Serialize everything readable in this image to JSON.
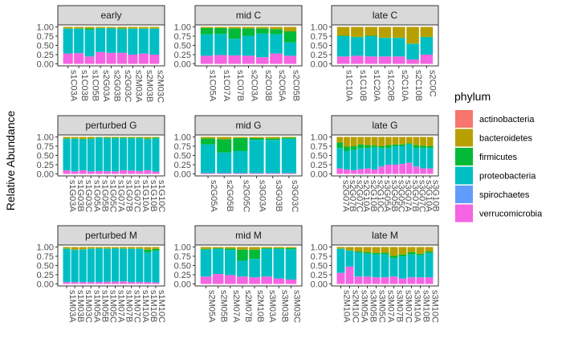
{
  "chart_data": {
    "type": "bar",
    "stacked": true,
    "ylabel": "Relative Abundance",
    "xlabel": "",
    "ylim": [
      0,
      1
    ],
    "yticks": [
      "0.00",
      "0.25",
      "0.50",
      "0.75",
      "1.00"
    ],
    "grid": false,
    "legend_position": "right",
    "legend_title": "phylum",
    "stack_order_top_to_bottom": [
      "actinobacteria",
      "bacteroidetes",
      "firmicutes",
      "proteobacteria",
      "spirochaetes",
      "verrucomicrobia"
    ],
    "legend": [
      {
        "name": "actinobacteria",
        "color": "#F8766D"
      },
      {
        "name": "bacteroidetes",
        "color": "#B79F00"
      },
      {
        "name": "firmicutes",
        "color": "#00BA38"
      },
      {
        "name": "proteobacteria",
        "color": "#00BFC4"
      },
      {
        "name": "spirochaetes",
        "color": "#619CFF"
      },
      {
        "name": "verrucomicrobia",
        "color": "#F564E3"
      }
    ],
    "panels": [
      {
        "title": "early",
        "categories": [
          "s1C03A",
          "s1C03B",
          "s1C05B",
          "s2G03A",
          "s2G03B",
          "s2G03C",
          "s2M03A",
          "s2M03B",
          "s2M03C"
        ],
        "values": {
          "verrucomicrobia": [
            0.28,
            0.29,
            0.2,
            0.32,
            0.3,
            0.3,
            0.25,
            0.28,
            0.25
          ],
          "proteobacteria": [
            0.67,
            0.66,
            0.72,
            0.64,
            0.66,
            0.64,
            0.7,
            0.67,
            0.7
          ],
          "firmicutes": [
            0.01,
            0.01,
            0.04,
            0.01,
            0.01,
            0.02,
            0.01,
            0.01,
            0.01
          ],
          "bacteroidetes": [
            0.04,
            0.04,
            0.04,
            0.03,
            0.03,
            0.04,
            0.04,
            0.04,
            0.04
          ]
        }
      },
      {
        "title": "mid C",
        "categories": [
          "s1C05A",
          "s1C07A",
          "s1C07B",
          "s2C03A",
          "s2C03B",
          "s2C05A",
          "s2C05B"
        ],
        "values": {
          "verrucomicrobia": [
            0.22,
            0.24,
            0.23,
            0.22,
            0.18,
            0.28,
            0.22
          ],
          "proteobacteria": [
            0.58,
            0.57,
            0.45,
            0.54,
            0.64,
            0.52,
            0.36
          ],
          "firmicutes": [
            0.17,
            0.16,
            0.28,
            0.2,
            0.14,
            0.14,
            0.3
          ],
          "bacteroidetes": [
            0.03,
            0.03,
            0.04,
            0.04,
            0.04,
            0.06,
            0.12
          ]
        }
      },
      {
        "title": "late C",
        "categories": [
          "s1C10A",
          "s1C10B",
          "s1C20A",
          "s1C20B",
          "s2C10A",
          "s2C10B",
          "s2C0C"
        ],
        "values": {
          "verrucomicrobia": [
            0.2,
            0.22,
            0.2,
            0.2,
            0.2,
            0.12,
            0.25
          ],
          "proteobacteria": [
            0.55,
            0.5,
            0.55,
            0.5,
            0.5,
            0.42,
            0.47
          ],
          "firmicutes": [
            0.01,
            0.01,
            0.01,
            0.01,
            0.01,
            0.01,
            0.01
          ],
          "bacteroidetes": [
            0.24,
            0.27,
            0.24,
            0.29,
            0.29,
            0.45,
            0.27
          ]
        }
      },
      {
        "title": "perturbed G",
        "categories": [
          "s1G03A",
          "s1G03B",
          "s1G03C",
          "s1G05A",
          "s1G05B",
          "s1G05C",
          "s1G07A",
          "s1G07B",
          "s1G07C",
          "s1G10A",
          "s1G10B",
          "s1G10C"
        ],
        "values": {
          "verrucomicrobia": [
            0.1,
            0.07,
            0.1,
            0.07,
            0.08,
            0.07,
            0.07,
            0.1,
            0.09,
            0.08,
            0.1,
            0.06
          ],
          "proteobacteria": [
            0.84,
            0.88,
            0.83,
            0.87,
            0.9,
            0.89,
            0.89,
            0.86,
            0.87,
            0.88,
            0.84,
            0.9
          ],
          "firmicutes": [
            0.02,
            0.01,
            0.02,
            0.02,
            0.01,
            0.02,
            0.02,
            0.02,
            0.02,
            0.02,
            0.02,
            0.02
          ],
          "bacteroidetes": [
            0.04,
            0.04,
            0.05,
            0.04,
            0.01,
            0.02,
            0.02,
            0.02,
            0.02,
            0.02,
            0.04,
            0.02
          ]
        }
      },
      {
        "title": "mid G",
        "categories": [
          "s2G05A",
          "s2G05B",
          "s2G05C",
          "s3G03A",
          "s3G03B",
          "s3G03C"
        ],
        "values": {
          "verrucomicrobia": [
            0.02,
            0.02,
            0.02,
            0.02,
            0.02,
            0.02
          ],
          "proteobacteria": [
            0.78,
            0.56,
            0.6,
            0.9,
            0.9,
            0.93
          ],
          "firmicutes": [
            0.16,
            0.36,
            0.35,
            0.05,
            0.04,
            0.03
          ],
          "bacteroidetes": [
            0.04,
            0.06,
            0.03,
            0.03,
            0.04,
            0.02
          ]
        }
      },
      {
        "title": "late G",
        "categories": [
          "s2G07A",
          "s2G07B",
          "s2G07C",
          "s2G10A",
          "s2G10B",
          "s2G10C",
          "s3G05A",
          "s3G05B",
          "s3G05C",
          "s3G07A",
          "s3G07B",
          "s3G07C",
          "s3G10A",
          "s3G10B"
        ],
        "values": {
          "verrucomicrobia": [
            0.15,
            0.12,
            0.1,
            0.13,
            0.15,
            0.12,
            0.2,
            0.25,
            0.25,
            0.27,
            0.3,
            0.2,
            0.15,
            0.15
          ],
          "proteobacteria": [
            0.55,
            0.5,
            0.55,
            0.57,
            0.55,
            0.6,
            0.5,
            0.45,
            0.5,
            0.48,
            0.5,
            0.5,
            0.55,
            0.55
          ],
          "firmicutes": [
            0.15,
            0.12,
            0.1,
            0.1,
            0.08,
            0.05,
            0.05,
            0.08,
            0.05,
            0.05,
            0.03,
            0.08,
            0.06,
            0.05
          ],
          "bacteroidetes": [
            0.15,
            0.26,
            0.25,
            0.2,
            0.22,
            0.23,
            0.25,
            0.22,
            0.2,
            0.2,
            0.17,
            0.22,
            0.24,
            0.25
          ]
        }
      },
      {
        "title": "perturbed M",
        "categories": [
          "s1M03A",
          "s1M03B",
          "s1M03C",
          "s1M05A",
          "s1M05B",
          "s1M05C",
          "s1M07A",
          "s1M07B",
          "s1M07C",
          "s1M10A",
          "s1M10B",
          "s1M10C"
        ],
        "values": {
          "verrucomicrobia": [
            0.05,
            0.05,
            0.05,
            0.05,
            0.05,
            0.06,
            0.06,
            0.07,
            0.05,
            0.05,
            0.05,
            0.04
          ],
          "proteobacteria": [
            0.9,
            0.87,
            0.88,
            0.9,
            0.91,
            0.89,
            0.9,
            0.88,
            0.9,
            0.9,
            0.8,
            0.86
          ],
          "firmicutes": [
            0.01,
            0.01,
            0.01,
            0.01,
            0.01,
            0.01,
            0.01,
            0.01,
            0.01,
            0.01,
            0.08,
            0.05
          ],
          "bacteroidetes": [
            0.04,
            0.07,
            0.06,
            0.04,
            0.03,
            0.04,
            0.03,
            0.04,
            0.04,
            0.04,
            0.07,
            0.05
          ]
        }
      },
      {
        "title": "mid M",
        "categories": [
          "s2M05A",
          "s2M05B",
          "s2M07A",
          "s2M07B",
          "s2M10B",
          "s3M03A",
          "s3M03B",
          "s3M03C"
        ],
        "values": {
          "verrucomicrobia": [
            0.2,
            0.27,
            0.24,
            0.2,
            0.18,
            0.2,
            0.15,
            0.12
          ],
          "proteobacteria": [
            0.73,
            0.68,
            0.68,
            0.43,
            0.5,
            0.75,
            0.8,
            0.82
          ],
          "firmicutes": [
            0.02,
            0.02,
            0.04,
            0.3,
            0.25,
            0.02,
            0.02,
            0.03
          ],
          "bacteroidetes": [
            0.05,
            0.03,
            0.04,
            0.07,
            0.07,
            0.03,
            0.03,
            0.03
          ]
        }
      },
      {
        "title": "late M",
        "categories": [
          "s2M10A",
          "s2M10C",
          "s3M05A",
          "s3M05B",
          "s3M05C",
          "s3M07A",
          "s3M07B",
          "s3M07C",
          "s3M10A",
          "s3M10B",
          "s3M10C"
        ],
        "values": {
          "verrucomicrobia": [
            0.3,
            0.47,
            0.2,
            0.2,
            0.18,
            0.18,
            0.2,
            0.15,
            0.18,
            0.18,
            0.18
          ],
          "proteobacteria": [
            0.65,
            0.43,
            0.65,
            0.62,
            0.62,
            0.62,
            0.5,
            0.6,
            0.62,
            0.6,
            0.66
          ],
          "firmicutes": [
            0.01,
            0.01,
            0.03,
            0.04,
            0.04,
            0.05,
            0.06,
            0.05,
            0.06,
            0.04,
            0.04
          ],
          "bacteroidetes": [
            0.04,
            0.09,
            0.12,
            0.14,
            0.16,
            0.15,
            0.24,
            0.2,
            0.14,
            0.18,
            0.12
          ]
        }
      }
    ]
  }
}
